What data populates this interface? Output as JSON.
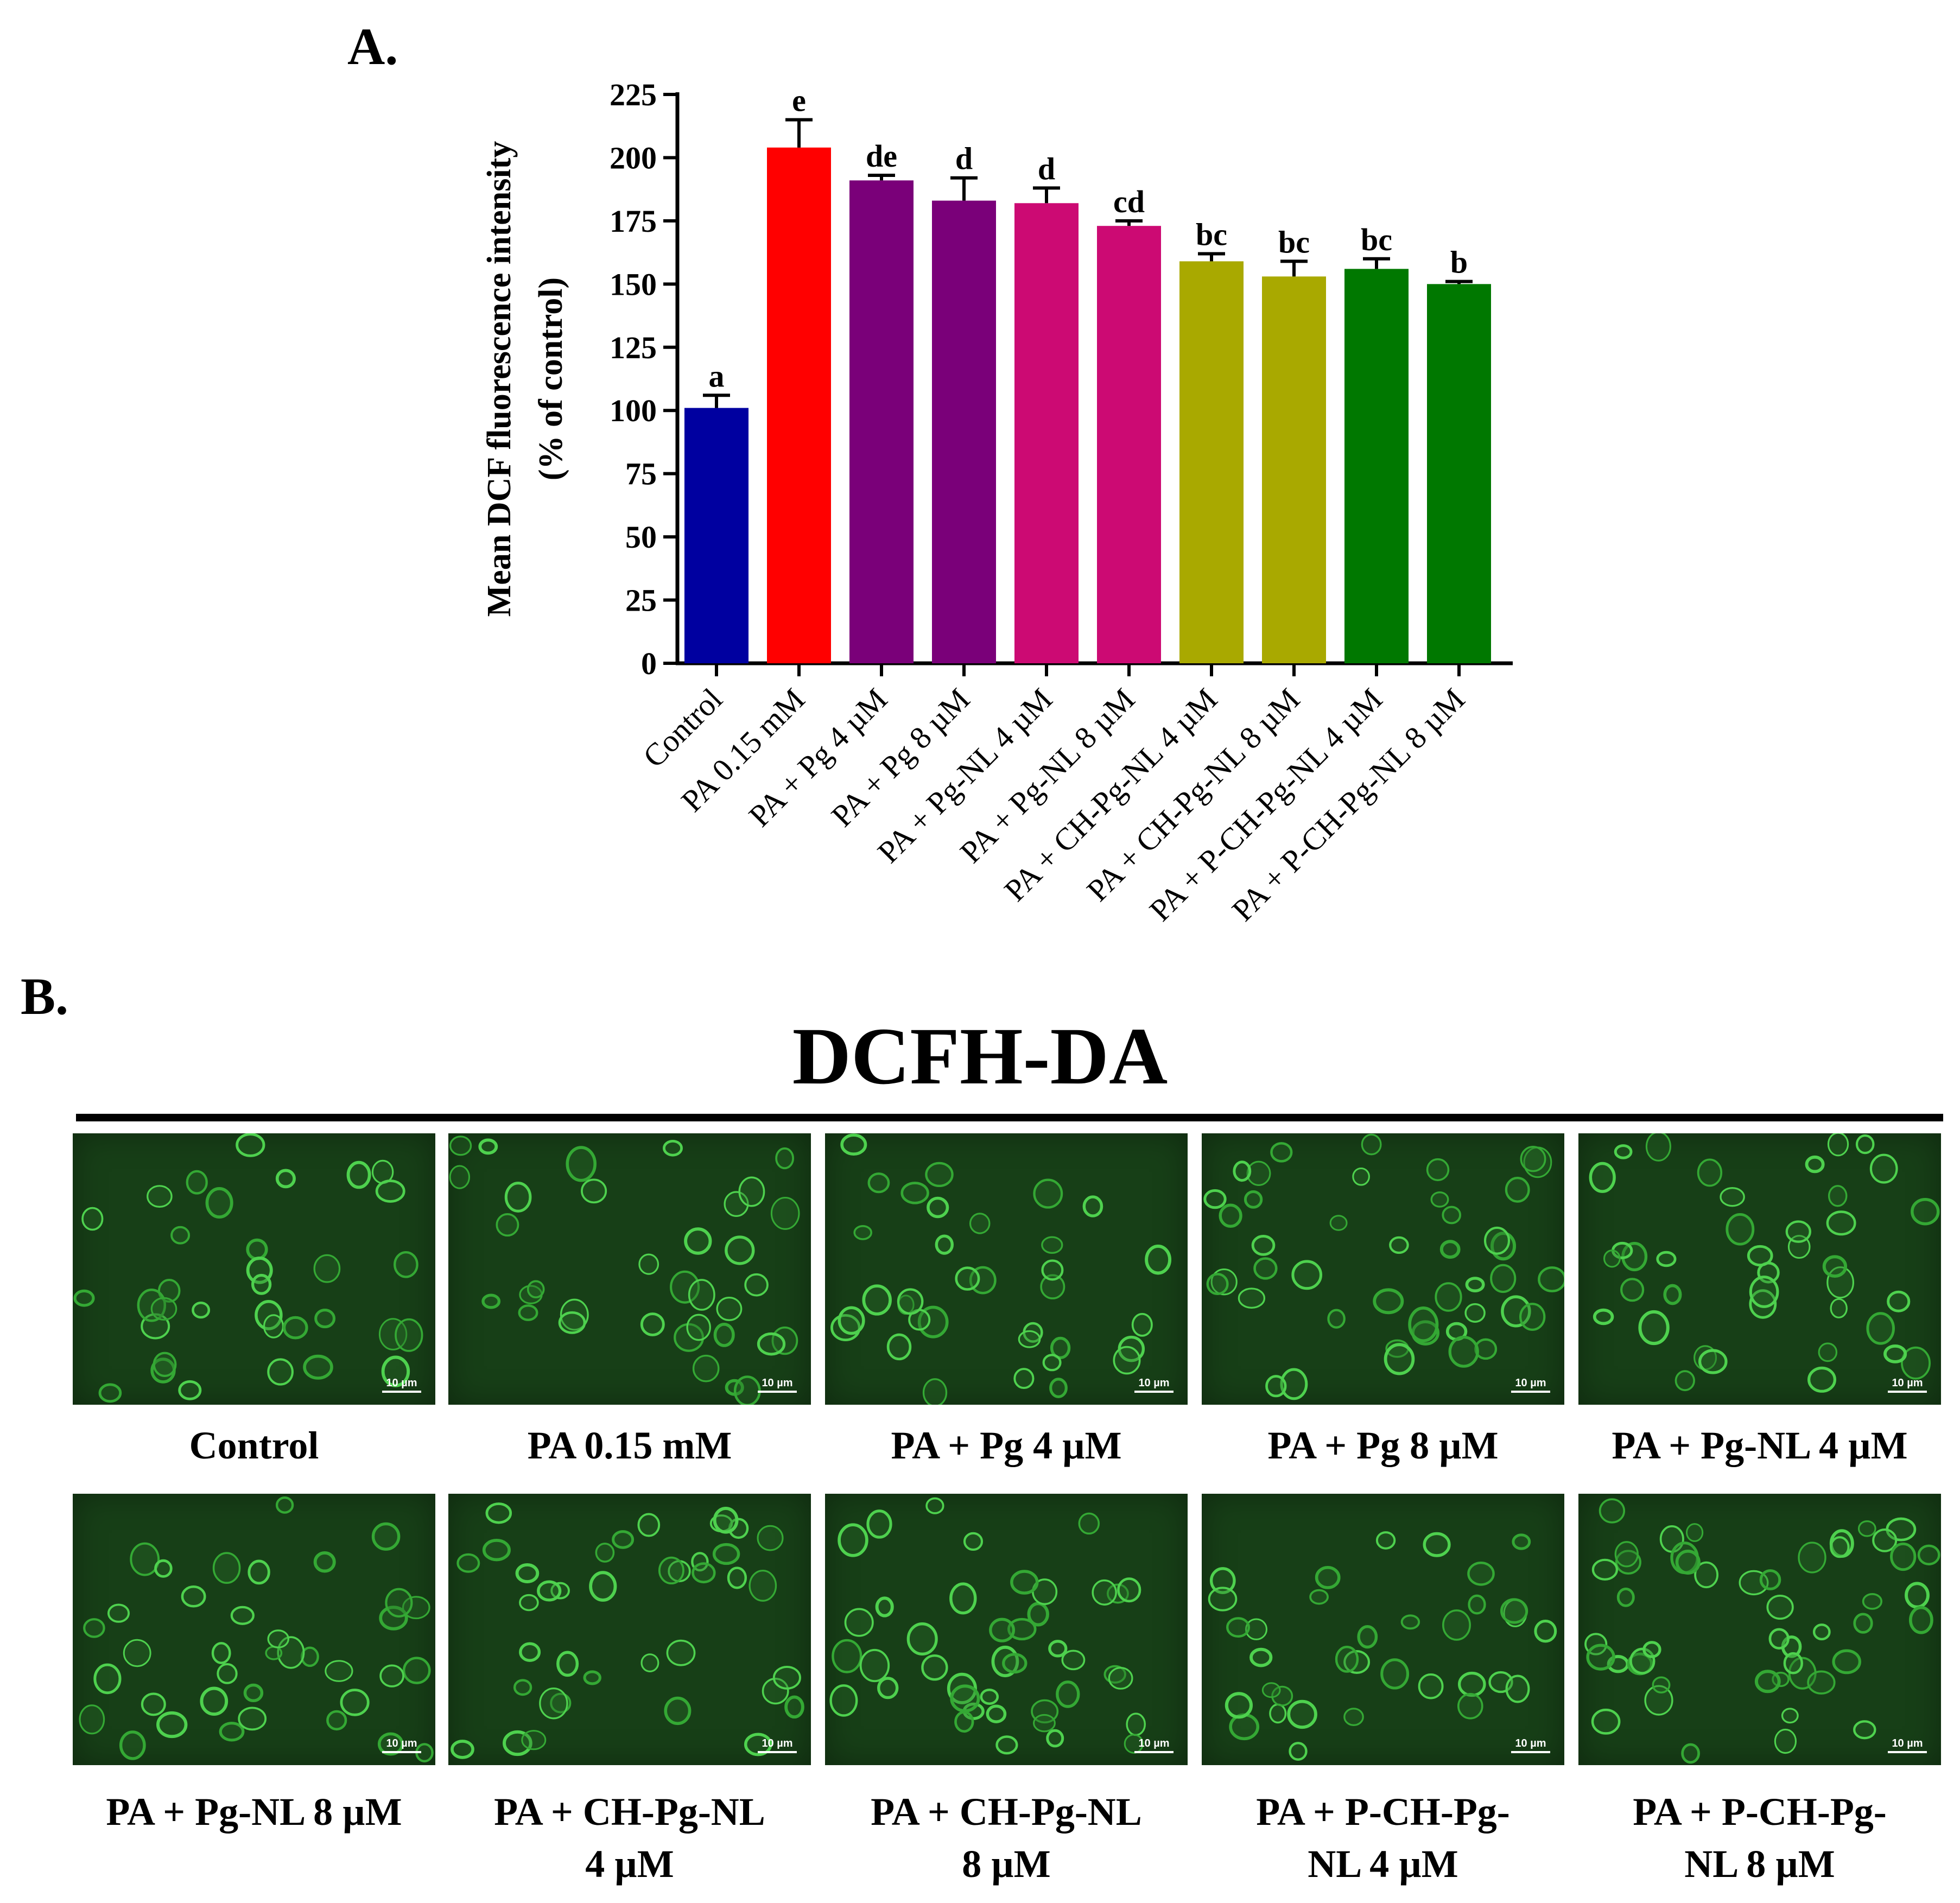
{
  "panel_a_label": "A.",
  "panel_b_label": "B.",
  "chart_data": {
    "type": "bar",
    "title": "",
    "ylabel_line1": "Mean DCF fluorescence intensity",
    "ylabel_line2": "(% of control)",
    "xlabel": "",
    "ylim": [
      0,
      225
    ],
    "yticks": [
      0,
      25,
      50,
      75,
      100,
      125,
      150,
      175,
      200,
      225
    ],
    "categories": [
      "Control",
      "PA 0.15 mM",
      "PA + Pg 4 µM",
      "PA + Pg 8 µM",
      "PA + Pg-NL 4 µM",
      "PA + Pg-NL 8 µM",
      "PA + CH-Pg-NL 4 µM",
      "PA + CH-Pg-NL 8 µM",
      "PA + P-CH-Pg-NL 4 µM",
      "PA + P-CH-Pg-NL 8 µM"
    ],
    "values": [
      101,
      204,
      191,
      183,
      182,
      173,
      159,
      153,
      156,
      150
    ],
    "errors": [
      5,
      11,
      2,
      9,
      6,
      2,
      3,
      6,
      4,
      1
    ],
    "significance_letters": [
      "a",
      "e",
      "de",
      "d",
      "d",
      "cd",
      "bc",
      "bc",
      "bc",
      "b"
    ],
    "colors": [
      "#0000a0",
      "#ff0000",
      "#7a0079",
      "#7a0079",
      "#cc0a73",
      "#cc0a73",
      "#a9a900",
      "#a9a900",
      "#007800",
      "#007800"
    ],
    "grid": false,
    "legend": "none"
  },
  "panel_b": {
    "title": "DCFH-DA",
    "scale_bar": "10 µm",
    "images": [
      {
        "caption": [
          "Control"
        ]
      },
      {
        "caption": [
          "PA 0.15 mM"
        ]
      },
      {
        "caption": [
          "PA + Pg 4 µM"
        ]
      },
      {
        "caption": [
          "PA + Pg 8 µM"
        ]
      },
      {
        "caption": [
          "PA + Pg-NL 4 µM"
        ]
      },
      {
        "caption": [
          "PA + Pg-NL 8 µM"
        ]
      },
      {
        "caption": [
          "PA + CH-Pg-NL",
          "4 µM"
        ]
      },
      {
        "caption": [
          "PA + CH-Pg-NL",
          "8 µM"
        ]
      },
      {
        "caption": [
          "PA + P-CH-Pg-",
          "NL 4 µM"
        ]
      },
      {
        "caption": [
          "PA + P-CH-Pg-",
          "NL 8 µM"
        ]
      }
    ]
  }
}
